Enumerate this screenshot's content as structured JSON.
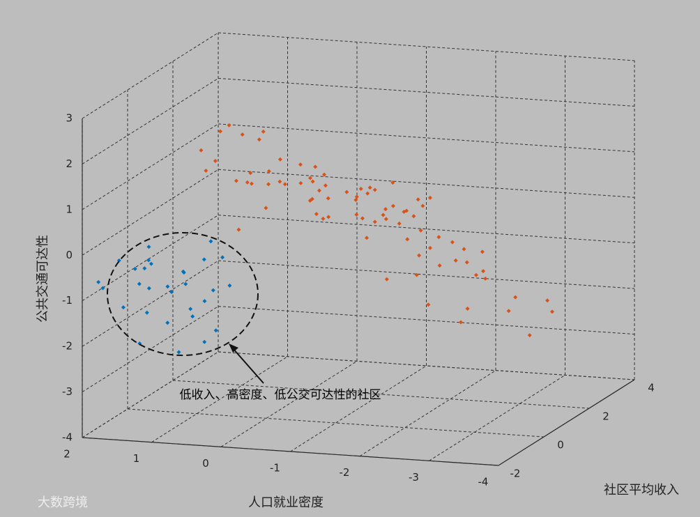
{
  "chart_data": {
    "type": "scatter3d",
    "xlabel": "人口就业密度",
    "ylabel": "社区平均收入",
    "zlabel": "公共交通可达性",
    "annotation": "低收入、高密度、低公交可达性的社区",
    "watermark": "大数跨境",
    "xlim": [
      2,
      -4
    ],
    "ylim": [
      -2,
      4
    ],
    "zlim": [
      -4,
      3
    ],
    "xticks": [
      2,
      1,
      0,
      -1,
      -2,
      -3,
      -4
    ],
    "yticks": [
      -2,
      0,
      2,
      4
    ],
    "zticks": [
      -4,
      -3,
      -2,
      -1,
      0,
      1,
      2,
      3
    ],
    "grid": true,
    "series": [
      {
        "color": "#d95319",
        "x": [
          -1.2,
          -0.5,
          0.3,
          -2.1,
          -1.8,
          0.8,
          -0.2,
          -1.5,
          -2.8,
          0.1,
          -0.9,
          -1.3,
          0.5,
          -2.4,
          -0.7,
          1.1,
          -1.6,
          -0.3,
          -2.0,
          -1.1,
          0.2,
          -0.8,
          -2.6,
          -1.4,
          0.6,
          -0.1,
          -1.9,
          -3.1,
          -0.6,
          0.9,
          -1.0,
          -2.2,
          -0.4,
          0.4,
          -1.7,
          -2.9,
          -0.2,
          -1.2,
          0.7,
          -2.5,
          -0.8,
          -1.5,
          0.0,
          -3.3,
          -1.9,
          -0.5,
          1.3,
          -2.3,
          -1.1,
          -0.3,
          -2.7,
          -0.9,
          0.3,
          -1.6,
          -3.5,
          -0.7,
          -2.0,
          -1.3,
          0.5,
          -2.4,
          -0.1,
          -1.8,
          -3.0,
          -0.6,
          -1.4,
          0.8,
          -2.1,
          -0.4,
          -1.0,
          -2.6,
          -3.6,
          -0.2,
          -1.7,
          0.1,
          -2.2,
          -1.2,
          -0.8,
          -3.2,
          -0.5,
          -1.5
        ],
        "y": [
          0.5,
          1.2,
          -0.3,
          0.8,
          2.1,
          0.2,
          1.6,
          -0.6,
          1.0,
          0.9,
          2.4,
          0.0,
          1.4,
          -0.2,
          0.6,
          0.7,
          1.8,
          -0.8,
          2.6,
          1.1,
          0.3,
          -0.4,
          0.4,
          1.9,
          1.0,
          2.2,
          -0.5,
          1.5,
          0.1,
          1.7,
          -0.9,
          2.8,
          0.8,
          -0.1,
          1.3,
          0.0,
          2.0,
          0.9,
          0.5,
          1.2,
          1.5,
          0.2,
          -0.7,
          2.3,
          1.0,
          0.4,
          1.1,
          -0.3,
          2.5,
          0.6,
          1.4,
          -0.2,
          0.9,
          0.7,
          1.9,
          2.1,
          0.1,
          1.6,
          -0.5,
          0.3,
          1.2,
          2.7,
          -0.6,
          0.5,
          1.0,
          1.8,
          0.8,
          -0.4,
          2.2,
          1.3,
          0.6,
          0.0,
          1.7,
          0.4,
          -0.1,
          2.4,
          1.1,
          0.9,
          2.9,
          0.2
        ],
        "values": [
          1.0,
          0.5,
          0.2,
          0.8,
          -0.5,
          1.5,
          0.0,
          1.2,
          -0.8,
          0.9,
          -0.2,
          0.6,
          1.8,
          -1.2,
          0.3,
          1.1,
          0.4,
          1.7,
          -0.9,
          0.7,
          2.0,
          1.4,
          -0.4,
          0.1,
          0.8,
          -0.3,
          -0.6,
          -1.5,
          1.3,
          1.6,
          1.9,
          -1.0,
          0.6,
          1.2,
          0.2,
          -1.3,
          0.5,
          0.9,
          2.2,
          -0.7,
          0.4,
          1.1,
          1.6,
          -1.8,
          0.0,
          0.7,
          1.4,
          -0.1,
          -0.4,
          1.0,
          -1.1,
          1.5,
          0.3,
          0.6,
          -1.9,
          -0.2,
          0.1,
          0.8,
          2.4,
          -0.5,
          1.2,
          -0.8,
          -1.4,
          0.9,
          0.2,
          0.5,
          -0.3,
          1.3,
          0.0,
          -1.0,
          -2.0,
          1.7,
          0.3,
          1.0,
          -0.6,
          -0.1,
          0.7,
          -1.6,
          -0.9,
          0.4
        ]
      },
      {
        "color": "#0072bd",
        "x": [
          1.5,
          1.0,
          0.6,
          1.8,
          1.2,
          0.8,
          0.4,
          1.6,
          1.1,
          0.7,
          1.9,
          1.3,
          0.5,
          0.9,
          1.4,
          1.7,
          0.3,
          1.0,
          0.6,
          1.2,
          0.8,
          1.5,
          1.1,
          0.4,
          1.8,
          0.9,
          1.3,
          0.7,
          1.6,
          1.0
        ],
        "y": [
          -1.2,
          -0.5,
          -1.8,
          -0.8,
          -1.5,
          0.0,
          -1.0,
          -0.3,
          -1.9,
          -0.6,
          -1.4,
          -0.2,
          -1.2,
          -1.6,
          -0.9,
          -0.4,
          -0.7,
          -1.3,
          -0.1,
          -1.7,
          -0.9,
          -1.0,
          -0.3,
          -1.5,
          -1.9,
          -0.5,
          -1.1,
          -0.2,
          -1.6,
          -0.8
        ],
        "values": [
          -0.5,
          -1.0,
          -0.3,
          -1.5,
          -0.8,
          -0.2,
          -1.8,
          -0.6,
          -1.2,
          -0.4,
          -0.9,
          -1.3,
          -2.0,
          -0.7,
          -0.1,
          -1.1,
          -0.9,
          -1.6,
          -0.5,
          -0.3,
          -1.4,
          -2.2,
          -0.8,
          -1.0,
          -0.6,
          -1.7,
          -0.4,
          -1.2,
          -0.2,
          -2.4
        ]
      }
    ]
  }
}
